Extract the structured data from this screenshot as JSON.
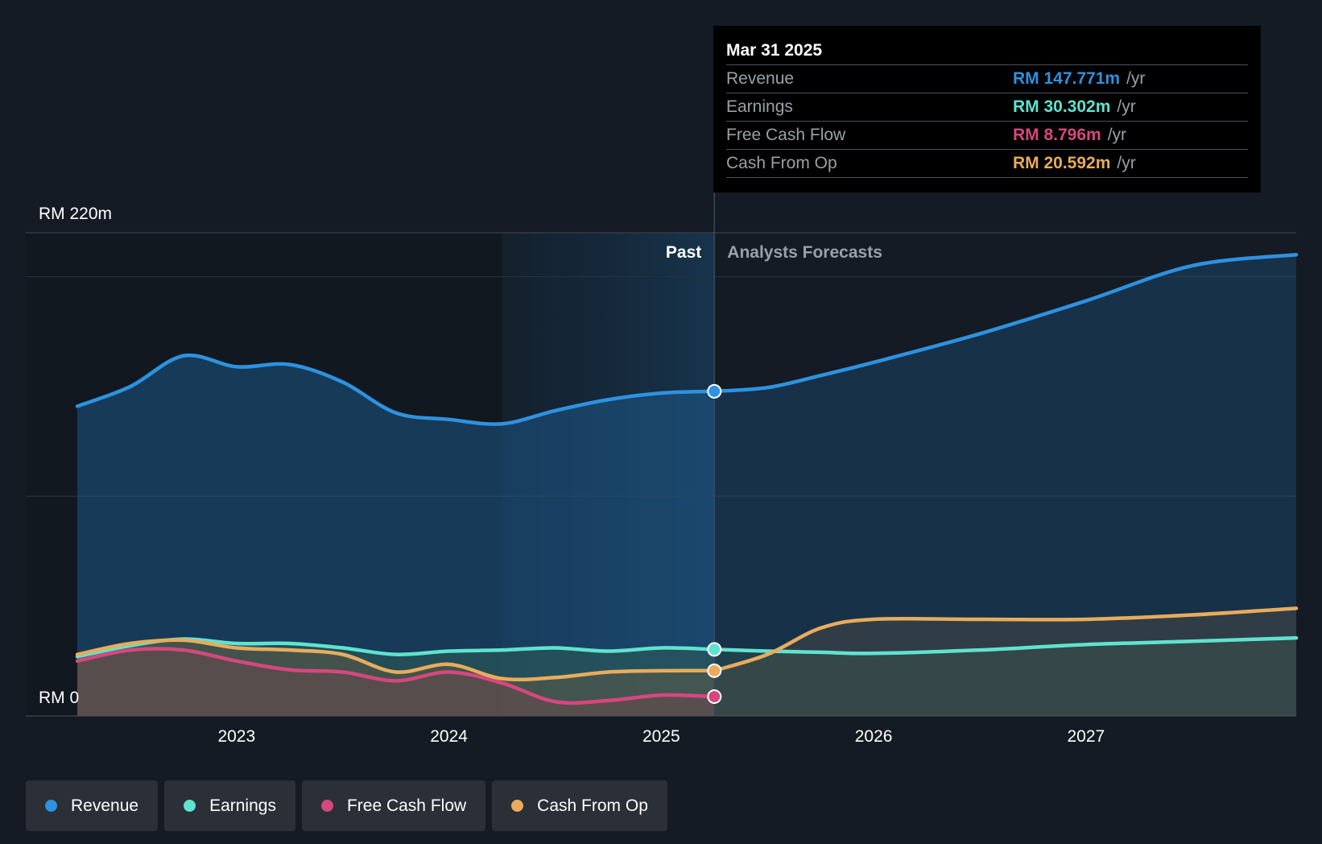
{
  "colors": {
    "revenue": "#2d92e0",
    "earnings": "#5fe3cf",
    "fcf": "#d6477e",
    "cfo": "#e8ac5c",
    "background": "#151b24"
  },
  "tooltip": {
    "date": "Mar 31 2025",
    "rows": [
      {
        "label": "Revenue",
        "value": "RM 147.771m",
        "unit": "/yr"
      },
      {
        "label": "Earnings",
        "value": "RM 30.302m",
        "unit": "/yr"
      },
      {
        "label": "Free Cash Flow",
        "value": "RM 8.796m",
        "unit": "/yr"
      },
      {
        "label": "Cash From Op",
        "value": "RM 20.592m",
        "unit": "/yr"
      }
    ]
  },
  "legend": [
    {
      "label": "Revenue",
      "icon": "revenue-dot-icon"
    },
    {
      "label": "Earnings",
      "icon": "earnings-dot-icon"
    },
    {
      "label": "Free Cash Flow",
      "icon": "fcf-dot-icon"
    },
    {
      "label": "Cash From Op",
      "icon": "cfo-dot-icon"
    }
  ],
  "chart_data": {
    "type": "area",
    "title": "",
    "xlabel": "",
    "ylabel": "",
    "ylim": [
      0,
      220
    ],
    "y_tick_labels": [
      "RM 0",
      "RM 220m"
    ],
    "x_tick_labels": [
      "2023",
      "2024",
      "2025",
      "2026",
      "2027"
    ],
    "xlim": [
      2022.25,
      2027.99
    ],
    "past_label": "Past",
    "forecast_label": "Analysts Forecasts",
    "divider_x": 2025.25,
    "shade_start_x": 2024.25,
    "series": [
      {
        "name": "Revenue",
        "key": "revenue",
        "past": [
          [
            2022.25,
            141
          ],
          [
            2022.5,
            150
          ],
          [
            2022.75,
            164
          ],
          [
            2023.0,
            159
          ],
          [
            2023.25,
            160
          ],
          [
            2023.5,
            152
          ],
          [
            2023.75,
            138
          ],
          [
            2024.0,
            135
          ],
          [
            2024.25,
            133
          ],
          [
            2024.5,
            139
          ],
          [
            2024.75,
            144
          ],
          [
            2025.0,
            147
          ],
          [
            2025.25,
            147.8
          ]
        ],
        "forecast": [
          [
            2025.25,
            147.8
          ],
          [
            2025.5,
            149.5
          ],
          [
            2025.75,
            155
          ],
          [
            2026.0,
            161
          ],
          [
            2026.5,
            174
          ],
          [
            2027.0,
            189
          ],
          [
            2027.5,
            205
          ],
          [
            2027.99,
            210
          ]
        ]
      },
      {
        "name": "Earnings",
        "key": "earnings",
        "past": [
          [
            2022.25,
            27
          ],
          [
            2022.5,
            32
          ],
          [
            2022.75,
            35
          ],
          [
            2023.0,
            33
          ],
          [
            2023.25,
            33
          ],
          [
            2023.5,
            31
          ],
          [
            2023.75,
            28
          ],
          [
            2024.0,
            29.5
          ],
          [
            2024.25,
            30
          ],
          [
            2024.5,
            31
          ],
          [
            2024.75,
            29.5
          ],
          [
            2025.0,
            31
          ],
          [
            2025.25,
            30.3
          ]
        ],
        "forecast": [
          [
            2025.25,
            30.3
          ],
          [
            2025.5,
            29.5
          ],
          [
            2025.75,
            29
          ],
          [
            2026.0,
            28.5
          ],
          [
            2026.5,
            30
          ],
          [
            2027.0,
            32.5
          ],
          [
            2027.5,
            34
          ],
          [
            2027.99,
            35.5
          ]
        ]
      },
      {
        "name": "Free Cash Flow",
        "key": "fcf",
        "past": [
          [
            2022.25,
            25
          ],
          [
            2022.5,
            30
          ],
          [
            2022.75,
            30
          ],
          [
            2023.0,
            25
          ],
          [
            2023.25,
            21
          ],
          [
            2023.5,
            20
          ],
          [
            2023.75,
            16
          ],
          [
            2024.0,
            20
          ],
          [
            2024.25,
            15
          ],
          [
            2024.5,
            6.5
          ],
          [
            2024.75,
            7
          ],
          [
            2025.0,
            9.5
          ],
          [
            2025.25,
            8.8
          ]
        ],
        "forecast": []
      },
      {
        "name": "Cash From Op",
        "key": "cfo",
        "past": [
          [
            2022.25,
            28
          ],
          [
            2022.5,
            33
          ],
          [
            2022.75,
            34.5
          ],
          [
            2023.0,
            31
          ],
          [
            2023.25,
            30
          ],
          [
            2023.5,
            28
          ],
          [
            2023.75,
            20
          ],
          [
            2024.0,
            23.5
          ],
          [
            2024.25,
            17
          ],
          [
            2024.5,
            17.5
          ],
          [
            2024.75,
            20
          ],
          [
            2025.0,
            20.6
          ],
          [
            2025.25,
            20.6
          ]
        ],
        "forecast": [
          [
            2025.25,
            20.6
          ],
          [
            2025.5,
            28
          ],
          [
            2025.75,
            40
          ],
          [
            2026.0,
            44
          ],
          [
            2026.5,
            44
          ],
          [
            2027.0,
            44
          ],
          [
            2027.5,
            46
          ],
          [
            2027.99,
            49
          ]
        ]
      }
    ],
    "markers": [
      {
        "key": "revenue",
        "x": 2025.25,
        "y": 147.8
      },
      {
        "key": "earnings",
        "x": 2025.25,
        "y": 30.3
      },
      {
        "key": "cfo",
        "x": 2025.25,
        "y": 20.6
      },
      {
        "key": "fcf",
        "x": 2025.25,
        "y": 8.8
      }
    ]
  }
}
